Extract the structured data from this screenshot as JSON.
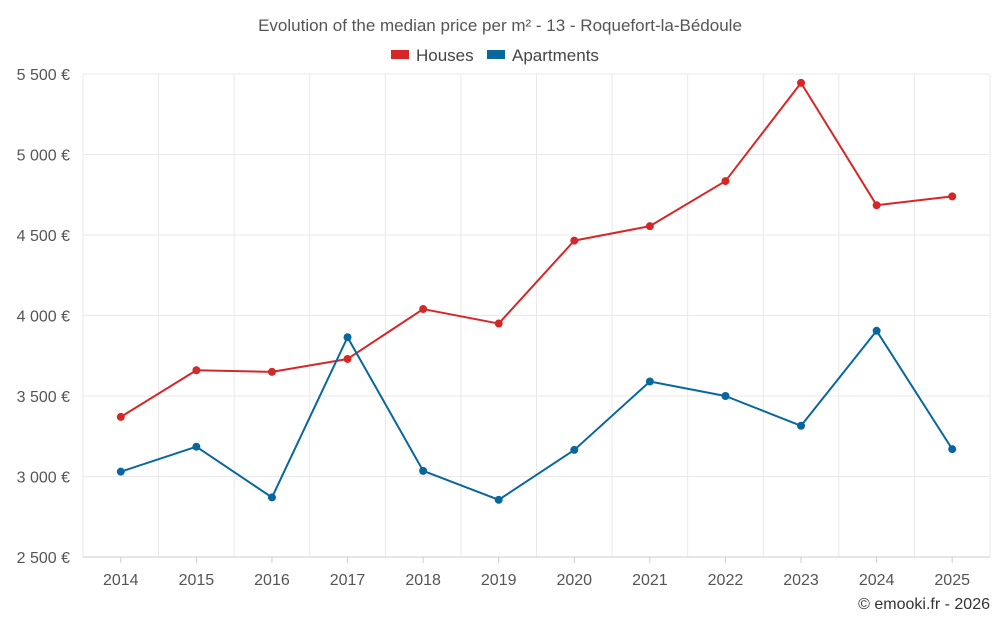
{
  "chart_data": {
    "type": "line",
    "title": "Evolution of the median price per m² - 13 - Roquefort-la-Bédoule",
    "categories": [
      "2014",
      "2015",
      "2016",
      "2017",
      "2018",
      "2019",
      "2020",
      "2021",
      "2022",
      "2023",
      "2024",
      "2025"
    ],
    "series": [
      {
        "name": "Houses",
        "color": "#d62728",
        "values": [
          3370,
          3660,
          3650,
          3730,
          4040,
          3950,
          4465,
          4555,
          4835,
          5445,
          4685,
          4740
        ]
      },
      {
        "name": "Apartments",
        "color": "#08679c",
        "values": [
          3030,
          3185,
          2870,
          3865,
          3035,
          2855,
          3165,
          3590,
          3500,
          3315,
          3905,
          3170
        ]
      }
    ],
    "ylim": [
      2500,
      5500
    ],
    "yticks": [
      2500,
      3000,
      3500,
      4000,
      4500,
      5000,
      5500
    ],
    "ytick_labels": [
      "2 500 €",
      "3 000 €",
      "3 500 €",
      "4 000 €",
      "4 500 €",
      "5 000 €",
      "5 500 €"
    ],
    "xlabel": "",
    "ylabel": "",
    "grid": true,
    "legend_position": "top-center"
  },
  "credit": "© emooki.fr - 2026"
}
